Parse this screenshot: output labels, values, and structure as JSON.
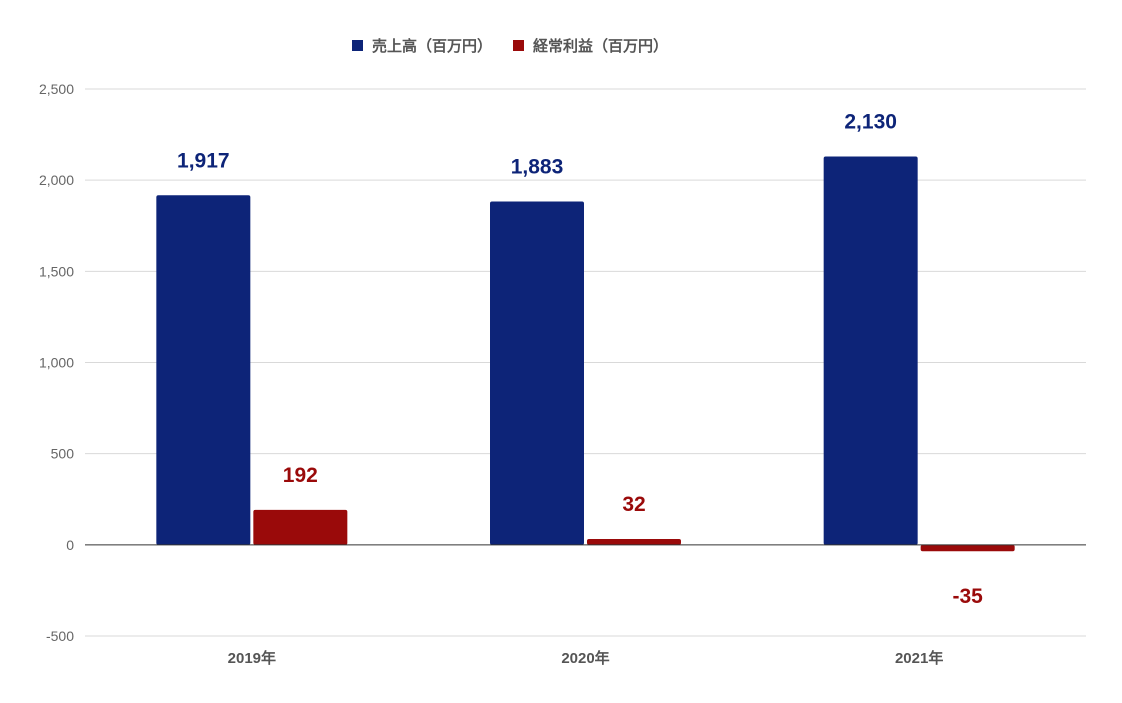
{
  "chart_data": {
    "type": "bar",
    "categories": [
      "2019年",
      "2020年",
      "2021年"
    ],
    "series": [
      {
        "name": "売上高（百万円）",
        "values": [
          1917,
          1883,
          2130
        ],
        "color": "#0d2478",
        "labels": [
          "1,917",
          "1,883",
          "2,130"
        ]
      },
      {
        "name": "経常利益（百万円）",
        "values": [
          192,
          32,
          -35
        ],
        "color": "#9a0a0a",
        "labels": [
          "192",
          "32",
          "-35"
        ]
      }
    ],
    "ylim": [
      -500,
      2500
    ],
    "yticks": [
      -500,
      0,
      500,
      1000,
      1500,
      2000,
      2500
    ],
    "ytick_labels": [
      "-500",
      "0",
      "500",
      "1,000",
      "1,500",
      "2,000",
      "2,500"
    ],
    "grid": true,
    "legend_position": "top-center",
    "title": "",
    "xlabel": "",
    "ylabel": ""
  }
}
